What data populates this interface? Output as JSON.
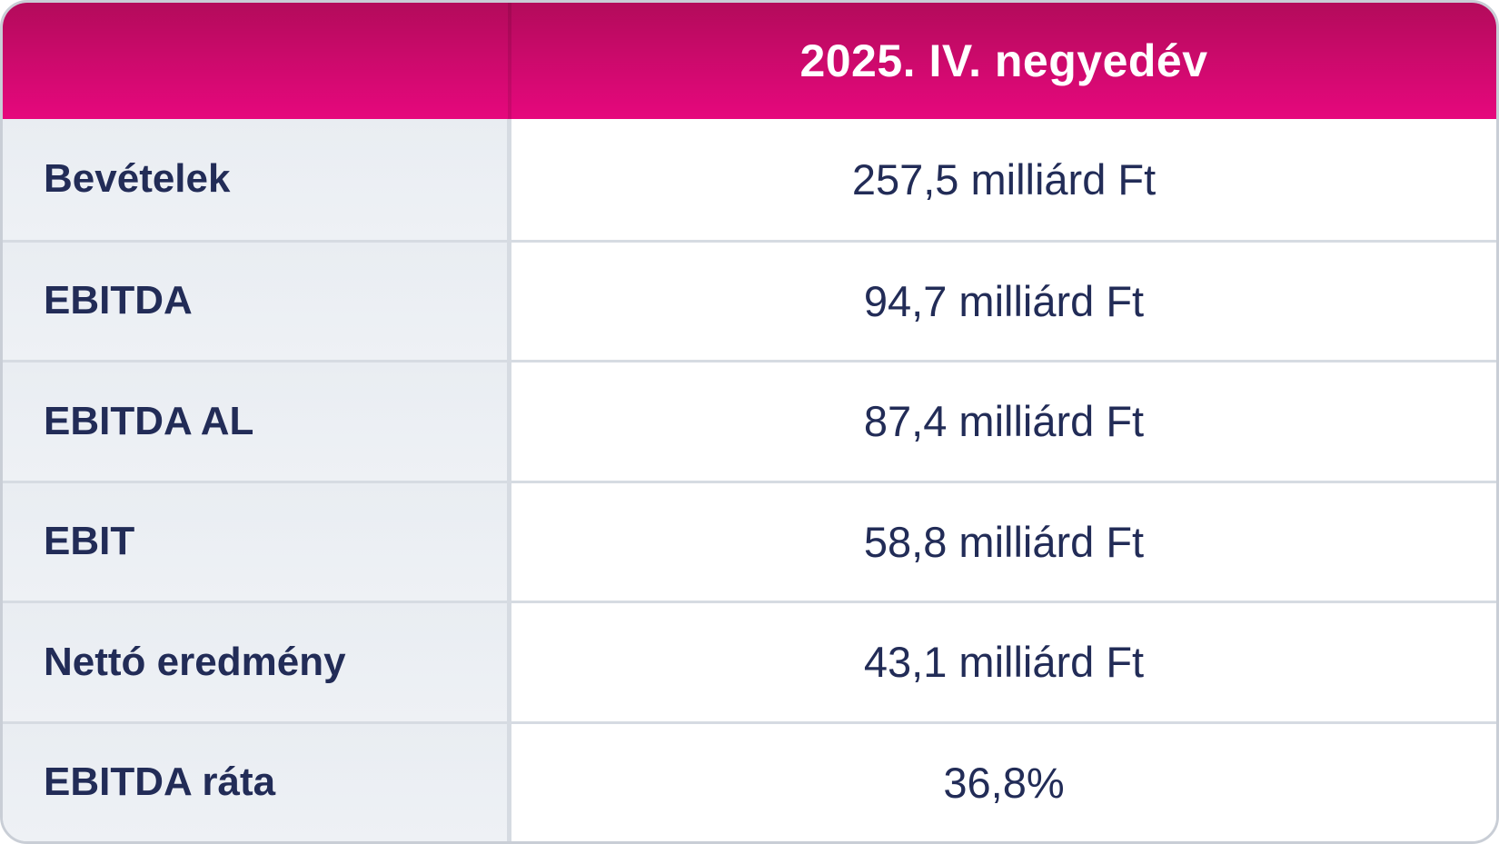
{
  "chart_data": {
    "type": "table",
    "columns": [
      "",
      "2025. IV. negyedév"
    ],
    "rows": [
      {
        "label": "Bevételek",
        "value": "257,5 milliárd Ft"
      },
      {
        "label": "EBITDA",
        "value": "94,7 milliárd Ft"
      },
      {
        "label": "EBITDA AL",
        "value": "87,4 milliárd Ft"
      },
      {
        "label": "EBIT",
        "value": "58,8 milliárd Ft"
      },
      {
        "label": "Nettó eredmény",
        "value": "43,1 milliárd Ft"
      },
      {
        "label": "EBITDA ráta",
        "value": "36,8%"
      }
    ],
    "layout": {
      "header_position": "top",
      "value_alignment": "center",
      "label_alignment": "left"
    }
  },
  "colors": {
    "header_gradient_top": "#b30b5b",
    "header_gradient_bottom": "#e6087d",
    "header_text": "#ffffff",
    "row_label_bg": "#e9edf2",
    "row_value_bg": "#ffffff",
    "text": "#222c57",
    "divider": "#d6dbe2",
    "border": "#c9ced6"
  }
}
